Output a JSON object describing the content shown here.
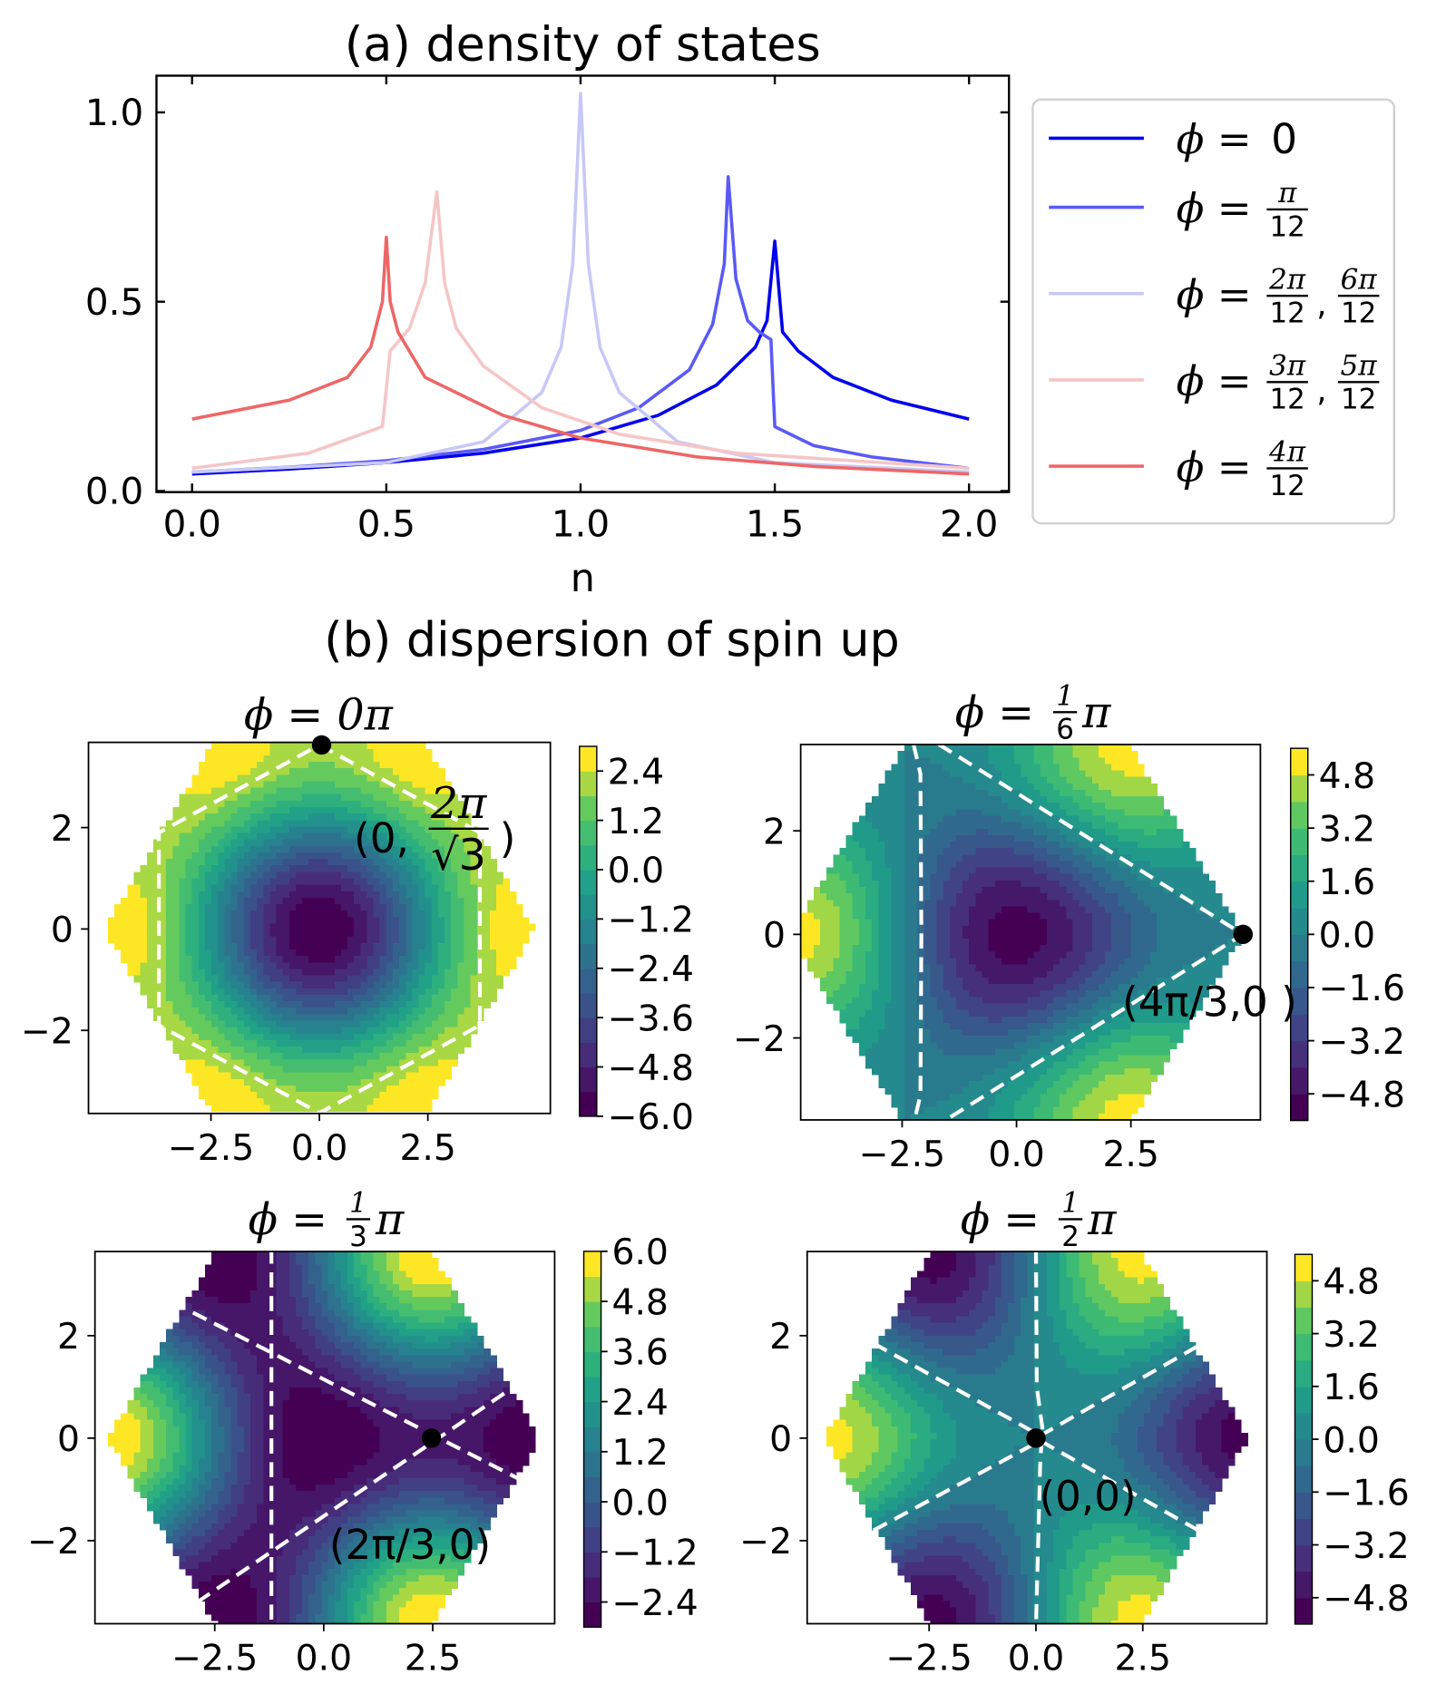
{
  "chart_data": [
    {
      "type": "line",
      "title": "(a) density of states",
      "xlabel": "n",
      "ylabel": "",
      "xlim": [
        -0.09,
        2.1
      ],
      "ylim": [
        -0.01,
        1.08
      ],
      "xticks": [
        "0.0",
        "0.5",
        "1.0",
        "1.5",
        "2.0"
      ],
      "xtick_values": [
        0,
        0.5,
        1.0,
        1.5,
        2.0
      ],
      "yticks": [
        "0.0",
        "0.5",
        "1.0"
      ],
      "ytick_values": [
        0,
        0.5,
        1.0
      ],
      "grid": false,
      "legend_position": "outside-right",
      "series": [
        {
          "legend": {
            "prefix": "ϕ = ",
            "value": "0"
          },
          "color": "#0000ee",
          "points": [
            [
              0,
              0.045
            ],
            [
              0.25,
              0.058
            ],
            [
              0.5,
              0.075
            ],
            [
              0.75,
              0.1
            ],
            [
              1.0,
              0.14
            ],
            [
              1.2,
              0.2
            ],
            [
              1.35,
              0.28
            ],
            [
              1.45,
              0.38
            ],
            [
              1.48,
              0.45
            ],
            [
              1.5,
              0.66
            ],
            [
              1.52,
              0.42
            ],
            [
              1.56,
              0.37
            ],
            [
              1.65,
              0.3
            ],
            [
              1.8,
              0.24
            ],
            [
              2.0,
              0.19
            ]
          ]
        },
        {
          "legend": {
            "prefix": "ϕ = ",
            "fractions": [
              {
                "num": "π",
                "den": "12"
              }
            ]
          },
          "color": "#5a5af5",
          "points": [
            [
              0,
              0.05
            ],
            [
              0.25,
              0.063
            ],
            [
              0.5,
              0.08
            ],
            [
              0.75,
              0.11
            ],
            [
              1.0,
              0.16
            ],
            [
              1.15,
              0.22
            ],
            [
              1.28,
              0.32
            ],
            [
              1.34,
              0.44
            ],
            [
              1.37,
              0.6
            ],
            [
              1.38,
              0.83
            ],
            [
              1.4,
              0.56
            ],
            [
              1.43,
              0.45
            ],
            [
              1.46,
              0.42
            ],
            [
              1.49,
              0.4
            ],
            [
              1.5,
              0.17
            ],
            [
              1.6,
              0.12
            ],
            [
              1.75,
              0.09
            ],
            [
              2.0,
              0.06
            ]
          ]
        },
        {
          "legend": {
            "prefix": "ϕ = ",
            "fractions": [
              {
                "num": "2π",
                "den": "12"
              },
              {
                "num": "6π",
                "den": "12"
              }
            ]
          },
          "color": "#c8c8f7",
          "points": [
            [
              0,
              0.05
            ],
            [
              0.5,
              0.075
            ],
            [
              0.75,
              0.13
            ],
            [
              0.9,
              0.26
            ],
            [
              0.95,
              0.38
            ],
            [
              0.98,
              0.6
            ],
            [
              1.0,
              1.05
            ],
            [
              1.02,
              0.6
            ],
            [
              1.05,
              0.38
            ],
            [
              1.1,
              0.26
            ],
            [
              1.25,
              0.13
            ],
            [
              1.5,
              0.075
            ],
            [
              2.0,
              0.05
            ]
          ]
        },
        {
          "legend": {
            "prefix": "ϕ = ",
            "fractions": [
              {
                "num": "3π",
                "den": "12"
              },
              {
                "num": "5π",
                "den": "12"
              }
            ]
          },
          "color": "#f5c6c6",
          "points": [
            [
              0,
              0.06
            ],
            [
              0.3,
              0.1
            ],
            [
              0.49,
              0.17
            ],
            [
              0.51,
              0.37
            ],
            [
              0.56,
              0.43
            ],
            [
              0.6,
              0.55
            ],
            [
              0.63,
              0.79
            ],
            [
              0.65,
              0.55
            ],
            [
              0.68,
              0.43
            ],
            [
              0.75,
              0.33
            ],
            [
              0.9,
              0.22
            ],
            [
              1.1,
              0.15
            ],
            [
              1.4,
              0.1
            ],
            [
              2.0,
              0.06
            ]
          ]
        },
        {
          "legend": {
            "prefix": "ϕ = ",
            "fractions": [
              {
                "num": "4π",
                "den": "12"
              }
            ]
          },
          "color": "#ee6666",
          "points": [
            [
              0,
              0.19
            ],
            [
              0.25,
              0.24
            ],
            [
              0.4,
              0.3
            ],
            [
              0.46,
              0.38
            ],
            [
              0.49,
              0.5
            ],
            [
              0.5,
              0.67
            ],
            [
              0.51,
              0.5
            ],
            [
              0.53,
              0.42
            ],
            [
              0.6,
              0.3
            ],
            [
              0.8,
              0.2
            ],
            [
              1.0,
              0.14
            ],
            [
              1.3,
              0.09
            ],
            [
              1.6,
              0.065
            ],
            [
              2.0,
              0.045
            ]
          ]
        }
      ]
    },
    {
      "type": "heatmap",
      "group_title": "(b) dispersion of spin up",
      "title": {
        "prefix": "ϕ = ",
        "value": "0π"
      },
      "colormap": "viridis",
      "vmin": -6.0,
      "vmax": 3.0,
      "colorbar_ticks": [
        "2.4",
        "1.2",
        "0.0",
        "−1.2",
        "−2.4",
        "−3.6",
        "−4.8",
        "−6.0"
      ],
      "xticks": [
        "−2.5",
        "0.0",
        "2.5"
      ],
      "yticks": [
        "2",
        "0",
        "−2"
      ],
      "marker": {
        "x": 0,
        "y": 3.63
      },
      "annotation": {
        "before": "(0,",
        "num": "2π",
        "den": "√3",
        "after": ")"
      }
    },
    {
      "type": "heatmap",
      "title": {
        "prefix": "ϕ = ",
        "num": "1",
        "den": "6",
        "suffix": "π"
      },
      "colormap": "viridis",
      "vmin": -5.6,
      "vmax": 5.6,
      "colorbar_ticks": [
        "4.8",
        "3.2",
        "1.6",
        "0.0",
        "−1.6",
        "−3.2",
        "−4.8"
      ],
      "xticks": [
        "−2.5",
        "0.0",
        "2.5"
      ],
      "yticks": [
        "2",
        "0",
        "−2"
      ],
      "marker": {
        "x": 4.19,
        "y": 0
      },
      "annotation": {
        "text": "(4π/3,0 )"
      }
    },
    {
      "type": "heatmap",
      "title": {
        "prefix": "ϕ = ",
        "num": "1",
        "den": "3",
        "suffix": "π"
      },
      "colormap": "viridis",
      "vmin": -3.0,
      "vmax": 6.0,
      "colorbar_ticks": [
        "6.0",
        "4.8",
        "3.6",
        "2.4",
        "1.2",
        "0.0",
        "−1.2",
        "−2.4"
      ],
      "xticks": [
        "−2.5",
        "0.0",
        "2.5"
      ],
      "yticks": [
        "2",
        "0",
        "−2"
      ],
      "marker": {
        "x": 2.09,
        "y": 0
      },
      "annotation": {
        "text": "(2π/3,0)"
      }
    },
    {
      "type": "heatmap",
      "title": {
        "prefix": "ϕ = ",
        "num": "1",
        "den": "2",
        "suffix": "π"
      },
      "colormap": "viridis",
      "vmin": -5.6,
      "vmax": 5.6,
      "colorbar_ticks": [
        "4.8",
        "3.2",
        "1.6",
        "0.0",
        "−1.6",
        "−3.2",
        "−4.8"
      ],
      "xticks": [
        "−2.5",
        "0.0",
        "2.5"
      ],
      "yticks": [
        "2",
        "0",
        "−2"
      ],
      "marker": {
        "x": 0,
        "y": 0
      },
      "annotation": {
        "text": "(0,0)"
      }
    }
  ]
}
